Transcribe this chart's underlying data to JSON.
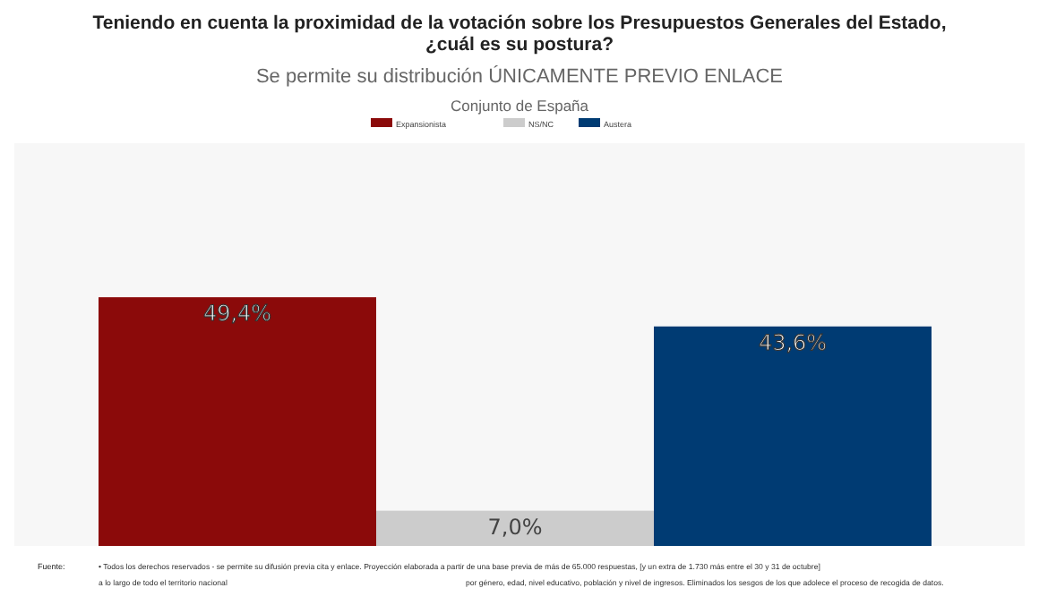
{
  "chart_data": {
    "type": "bar",
    "title": "Teniendo en cuenta la proximidad de la votación sobre los Presupuestos Generales del Estado, ¿cuál es su postura?",
    "subtitle": "Se permite su distribución ÚNICAMENTE PREVIO ENLACE",
    "annotations": [
      "Conjunto de España",
      "Fuente:",
      "• Todos los derechos reservados - se permite su difusión previa cita y enlace. Proyección elaborada a partir de una base previa de más de 65.000 respuestas, [y un extra de 1.730 más entre el 30 y 31 de octubre]",
      "a lo largo de todo el territorio nacional",
      "por género, edad, nivel educativo, población y nivel de ingresos. Eliminados los sesgos de los que adolece el proceso de recogida de datos."
    ],
    "categories": [
      null,
      null,
      null
    ],
    "stacked": true,
    "ylim": [
      0,
      80
    ],
    "tick_labels": false,
    "legend": "top",
    "series": [
      {
        "name": "Expansionista",
        "color": "#8b0a0a",
        "values": [
          49.4,
          null,
          null
        ],
        "value_labels": [
          "49,4%",
          null,
          null
        ]
      },
      {
        "name": "NS/NC",
        "color": "#cccccc",
        "values": [
          null,
          7.0,
          null
        ],
        "value_labels": [
          null,
          "7,0%",
          null
        ]
      },
      {
        "name": "Austera",
        "color": "#003b73",
        "values": [
          null,
          null,
          43.6
        ],
        "value_labels": [
          null,
          null,
          "43,6%"
        ]
      }
    ]
  }
}
